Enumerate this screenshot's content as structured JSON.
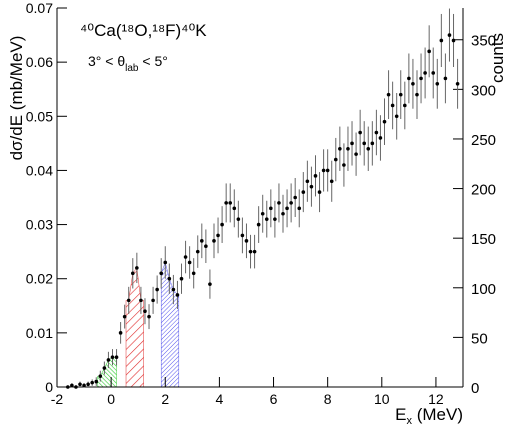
{
  "chart_data": {
    "type": "errorbar",
    "reaction": "⁴⁰Ca(¹⁸O,¹⁸F)⁴⁰K",
    "angle_range": [
      "3° < θ",
      "lab",
      " < 5°"
    ],
    "x_label": [
      "E",
      "x",
      " (MeV)"
    ],
    "y_label": "dσ/dE (mb/MeV)",
    "y2_label": "counts",
    "xlim": [
      -2,
      13
    ],
    "xticks": [
      -2,
      0,
      2,
      4,
      6,
      8,
      10,
      12
    ],
    "ylim": [
      0,
      0.07
    ],
    "yticks": [
      0,
      0.01,
      0.02,
      0.03,
      0.04,
      0.05,
      0.06,
      0.07
    ],
    "y2lim": [
      0,
      382
    ],
    "y2ticks": [
      0,
      50,
      100,
      150,
      200,
      250,
      300,
      350
    ],
    "color": "#000000",
    "regions": [
      {
        "from": -0.5,
        "to": 0.2,
        "color": "#33cc33"
      },
      {
        "from": 0.55,
        "to": 1.2,
        "color": "#e03030"
      },
      {
        "from": 1.85,
        "to": 2.5,
        "color": "#5555ee"
      }
    ],
    "x": [
      -1.6,
      -1.45,
      -1.3,
      -1.15,
      -1.0,
      -0.85,
      -0.7,
      -0.55,
      -0.4,
      -0.25,
      -0.1,
      0.05,
      0.2,
      0.35,
      0.5,
      0.65,
      0.8,
      0.95,
      1.1,
      1.25,
      1.4,
      1.55,
      1.7,
      1.85,
      2.0,
      2.15,
      2.3,
      2.45,
      2.6,
      2.75,
      2.9,
      3.05,
      3.2,
      3.35,
      3.5,
      3.65,
      3.8,
      3.95,
      4.1,
      4.25,
      4.4,
      4.55,
      4.7,
      4.85,
      5.0,
      5.15,
      5.3,
      5.45,
      5.6,
      5.75,
      5.9,
      6.05,
      6.2,
      6.35,
      6.5,
      6.65,
      6.8,
      6.95,
      7.1,
      7.25,
      7.4,
      7.55,
      7.7,
      7.85,
      8.0,
      8.15,
      8.3,
      8.45,
      8.6,
      8.75,
      8.9,
      9.05,
      9.2,
      9.35,
      9.5,
      9.65,
      9.8,
      9.95,
      10.1,
      10.25,
      10.4,
      10.55,
      10.7,
      10.85,
      11.0,
      11.15,
      11.3,
      11.45,
      11.6,
      11.75,
      11.9,
      12.05,
      12.2,
      12.35,
      12.5,
      12.65,
      12.8
    ],
    "values": [
      0,
      0.0003,
      0,
      0.0005,
      0.0003,
      0.0005,
      0.0008,
      0.001,
      0.002,
      0.0035,
      0.005,
      0.0055,
      0.0055,
      0.01,
      0.013,
      0.016,
      0.021,
      0.022,
      0.016,
      0.014,
      0.013,
      0.016,
      0.018,
      0.021,
      0.023,
      0.02,
      0.018,
      0.017,
      0.02,
      0.024,
      0.023,
      0.021,
      0.025,
      0.027,
      0.026,
      0.019,
      0.027,
      0.028,
      0.03,
      0.034,
      0.034,
      0.033,
      0.031,
      0.028,
      0.027,
      0.025,
      0.025,
      0.03,
      0.032,
      0.031,
      0.033,
      0.031,
      0.034,
      0.032,
      0.033,
      0.034,
      0.035,
      0.033,
      0.036,
      0.038,
      0.037,
      0.039,
      0.036,
      0.04,
      0.04,
      0.038,
      0.042,
      0.044,
      0.041,
      0.044,
      0.045,
      0.043,
      0.047,
      0.045,
      0.044,
      0.045,
      0.047,
      0.046,
      0.049,
      0.054,
      0.052,
      0.05,
      0.054,
      0.052,
      0.057,
      0.056,
      0.054,
      0.057,
      0.058,
      0.062,
      0.058,
      0.056,
      0.064,
      0.057,
      0.065,
      0.064,
      0.056
    ],
    "errors": [
      0.0003,
      0.0004,
      0.0003,
      0.0005,
      0.0004,
      0.0005,
      0.0006,
      0.0008,
      0.001,
      0.0012,
      0.0015,
      0.0015,
      0.0015,
      0.002,
      0.0022,
      0.0025,
      0.0028,
      0.0028,
      0.0025,
      0.0024,
      0.0023,
      0.0025,
      0.0026,
      0.0028,
      0.003,
      0.0028,
      0.0027,
      0.0026,
      0.0028,
      0.003,
      0.003,
      0.0028,
      0.003,
      0.0032,
      0.0031,
      0.0027,
      0.0032,
      0.0033,
      0.0034,
      0.0036,
      0.0036,
      0.0035,
      0.0034,
      0.0033,
      0.0032,
      0.0031,
      0.0031,
      0.0034,
      0.0035,
      0.0034,
      0.0035,
      0.0034,
      0.0036,
      0.0035,
      0.0035,
      0.0036,
      0.0036,
      0.0035,
      0.0037,
      0.0038,
      0.0037,
      0.0038,
      0.0037,
      0.0039,
      0.0039,
      0.0038,
      0.004,
      0.0041,
      0.004,
      0.0041,
      0.0041,
      0.004,
      0.0042,
      0.0041,
      0.0041,
      0.0041,
      0.0042,
      0.0042,
      0.0043,
      0.0045,
      0.0044,
      0.0043,
      0.0045,
      0.0044,
      0.0046,
      0.0046,
      0.0045,
      0.0046,
      0.0047,
      0.0048,
      0.0047,
      0.0046,
      0.0049,
      0.0046,
      0.0049,
      0.0049,
      0.0046
    ]
  }
}
